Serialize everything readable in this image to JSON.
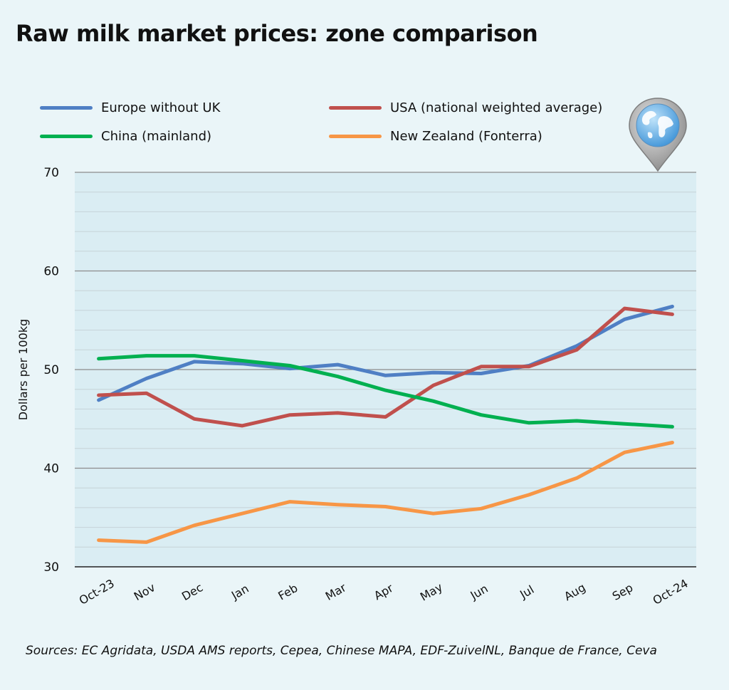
{
  "title": "Raw milk market prices: zone comparison",
  "sources": "Sources: EC Agridata, USDA AMS reports, Cepea, Chinese MAPA, EDF-ZuivelNL, Banque de France, Ceva",
  "icon": "globe-map-pin-icon",
  "chart_data": {
    "type": "line",
    "title": "Raw milk market prices: zone comparison",
    "ylabel": "Dollars per 100kg",
    "xlabel": "",
    "ylim": [
      30,
      70
    ],
    "yticks": [
      30,
      40,
      50,
      60,
      70
    ],
    "grid": true,
    "legend_position": "top",
    "categories": [
      "Oct-23",
      "Nov",
      "Dec",
      "Jan",
      "Feb",
      "Mar",
      "Apr",
      "May",
      "Jun",
      "Jul",
      "Aug",
      "Sep",
      "Oct-24"
    ],
    "series": [
      {
        "name": "Europe without UK",
        "color": "#4f7fc4",
        "values": [
          46.9,
          49.1,
          50.8,
          50.6,
          50.1,
          50.5,
          49.4,
          49.7,
          49.6,
          50.4,
          52.4,
          55.1,
          56.4
        ]
      },
      {
        "name": "USA (national weighted average)",
        "color": "#c0504d",
        "values": [
          47.4,
          47.6,
          45.0,
          44.3,
          45.4,
          45.6,
          45.2,
          48.4,
          50.3,
          50.3,
          52.0,
          56.2,
          55.6
        ]
      },
      {
        "name": "China (mainland)",
        "color": "#00b050",
        "values": [
          51.1,
          51.4,
          51.4,
          50.9,
          50.4,
          49.3,
          47.9,
          46.8,
          45.4,
          44.6,
          44.8,
          44.5,
          44.2
        ]
      },
      {
        "name": "New Zealand (Fonterra)",
        "color": "#f79646",
        "values": [
          32.7,
          32.5,
          34.2,
          35.4,
          36.6,
          36.3,
          36.1,
          35.4,
          35.9,
          37.3,
          39.0,
          41.6,
          42.6
        ]
      }
    ]
  }
}
